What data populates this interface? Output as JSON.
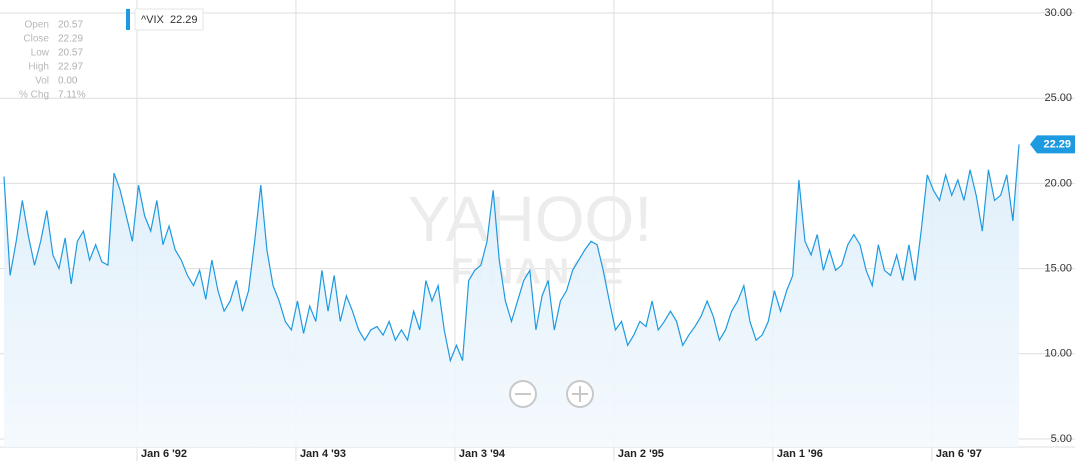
{
  "chart_data": {
    "type": "line",
    "series": [
      {
        "name": "^VIX",
        "color": "#1e9ae0",
        "values": [
          20.4,
          14.6,
          16.6,
          19,
          16.9,
          15.2,
          16.6,
          18.4,
          15.8,
          15,
          16.8,
          14.1,
          16.6,
          17.2,
          15.5,
          16.4,
          15.4,
          15.2,
          20.6,
          19.6,
          18.1,
          16.6,
          19.9,
          18.1,
          17.2,
          19,
          16.4,
          17.5,
          16.1,
          15.5,
          14.6,
          14,
          14.9,
          13.2,
          15.5,
          13.7,
          12.5,
          13.1,
          14.3,
          12.5,
          13.7,
          16.6,
          19.9,
          16.1,
          14,
          13.1,
          11.9,
          11.4,
          13.1,
          11.2,
          12.8,
          11.9,
          14.9,
          12.5,
          14.6,
          11.9,
          13.4,
          12.5,
          11.4,
          10.8,
          11.4,
          11.6,
          11.1,
          11.9,
          10.8,
          11.4,
          10.8,
          12.5,
          11.4,
          14.3,
          13.1,
          14,
          11.4,
          9.6,
          10.5,
          9.6,
          14.3,
          14.9,
          15.2,
          16.6,
          19.6,
          15.5,
          13.1,
          11.9,
          13.1,
          14.3,
          14.9,
          11.4,
          13.4,
          14.3,
          11.4,
          13.1,
          13.7,
          14.9,
          15.5,
          16.1,
          16.6,
          16.4,
          14.9,
          13.1,
          11.4,
          11.9,
          10.5,
          11.1,
          11.9,
          11.6,
          13.1,
          11.4,
          11.9,
          12.5,
          11.9,
          10.5,
          11.1,
          11.6,
          12.2,
          13.1,
          12.2,
          10.8,
          11.4,
          12.5,
          13.1,
          14,
          11.9,
          10.8,
          11.1,
          11.9,
          13.7,
          12.5,
          13.7,
          14.6,
          20.2,
          16.6,
          15.8,
          17,
          14.9,
          16.1,
          14.9,
          15.2,
          16.4,
          17,
          16.4,
          14.9,
          14,
          16.4,
          14.9,
          14.6,
          15.8,
          14.3,
          16.4,
          14.3,
          17.2,
          20.5,
          19.6,
          19,
          20.5,
          19.3,
          20.2,
          19,
          20.8,
          19.3,
          17.2,
          20.8,
          19,
          19.3,
          20.5,
          17.8,
          22.29
        ]
      }
    ],
    "xlim": [
      -0.65,
      167.8
    ],
    "xticks": [
      {
        "value": 21.75,
        "label": "Jan 6 '92"
      },
      {
        "value": 47.75,
        "label": "Jan 4 '93"
      },
      {
        "value": 73.75,
        "label": "Jan 3 '94"
      },
      {
        "value": 99.75,
        "label": "Jan 2 '95"
      },
      {
        "value": 125.75,
        "label": "Jan 1 '96"
      },
      {
        "value": 151.75,
        "label": "Jan 6 '97"
      }
    ],
    "ylim": [
      5,
      30
    ],
    "yticks": [
      {
        "value": 30,
        "label": "30.00"
      },
      {
        "value": 25,
        "label": "25.00"
      },
      {
        "value": 20,
        "label": "20.00"
      },
      {
        "value": 15,
        "label": "15.00"
      },
      {
        "value": 10,
        "label": "10.00"
      },
      {
        "value": 5,
        "label": "5.00"
      }
    ],
    "grid": true
  },
  "quote": {
    "rows": [
      {
        "label": "Open",
        "value": "20.57"
      },
      {
        "label": "Close",
        "value": "22.29"
      },
      {
        "label": "Low",
        "value": "20.57"
      },
      {
        "label": "High",
        "value": "22.97"
      },
      {
        "label": "Vol",
        "value": "0.00"
      },
      {
        "label": "% Chg",
        "value": "7.11%"
      }
    ]
  },
  "watermark": {
    "line1": "YAHOO!",
    "line2": "FINANCE"
  }
}
